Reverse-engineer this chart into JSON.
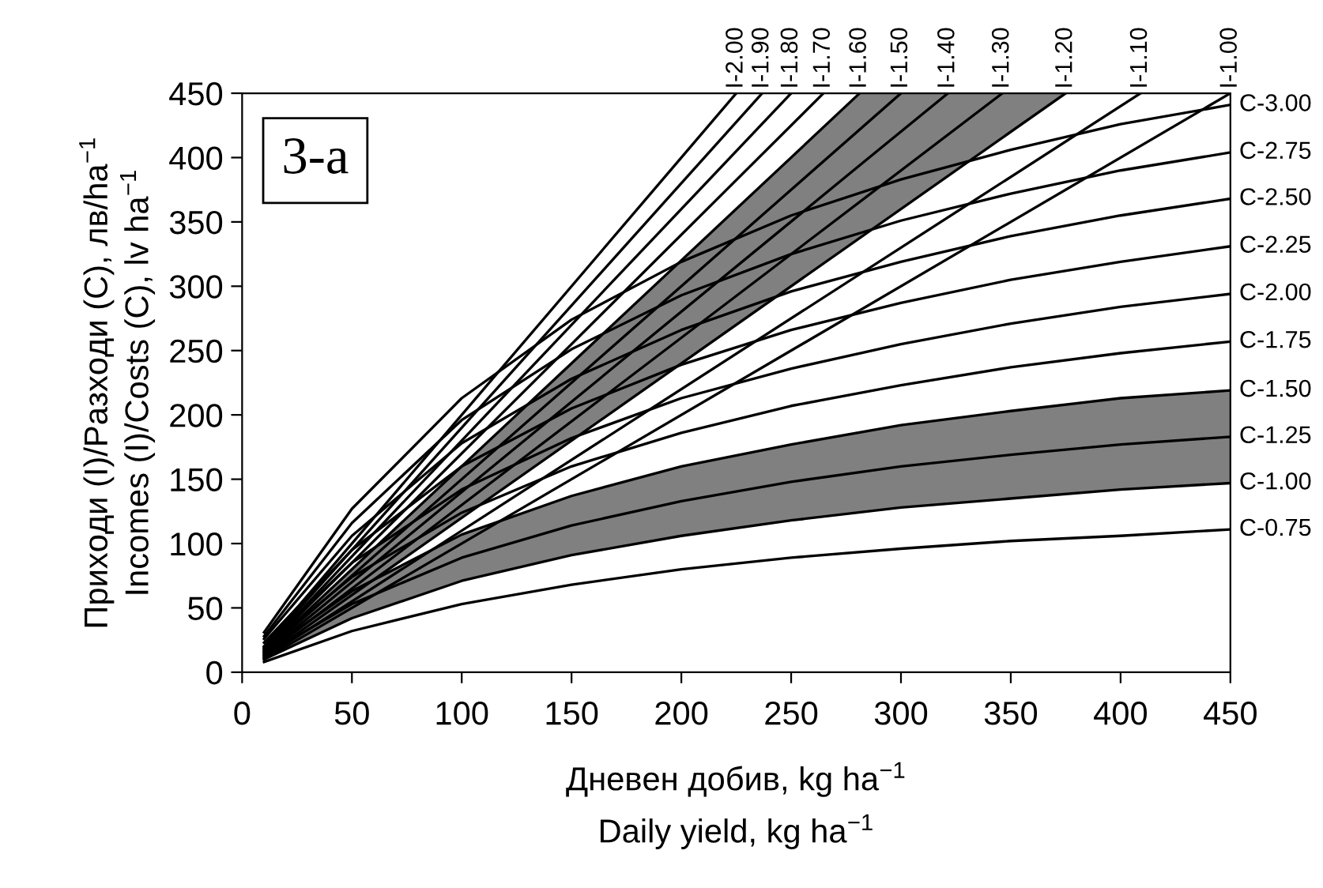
{
  "chart_data": {
    "type": "line",
    "xlabel": "Дневен добив, kg ha$^{−1}$\nDaily yield, kg ha$^{−1}$",
    "ylabel": "Приходи (I)/Разходи (C), лв/ha$^{−1}$\nIncomes (I)/Costs (C), lv ha$^{−1}$",
    "annotations": [
      "3-a"
    ],
    "xlim": [
      0,
      450
    ],
    "ylim": [
      0,
      450
    ],
    "xticks": [
      0,
      50,
      100,
      150,
      200,
      250,
      300,
      350,
      400,
      450
    ],
    "yticks": [
      0,
      50,
      100,
      150,
      200,
      250,
      300,
      350,
      400,
      450
    ],
    "grid": false,
    "legend": false,
    "marker": "none",
    "line_style": "solid",
    "series": [
      {
        "name": "I-2.00",
        "color": "#000000",
        "x": [
          10,
          225
        ],
        "values": [
          20,
          450
        ]
      },
      {
        "name": "I-1.90",
        "color": "#000000",
        "x": [
          10,
          236.8
        ],
        "values": [
          19,
          450
        ]
      },
      {
        "name": "I-1.80",
        "color": "#000000",
        "x": [
          10,
          250
        ],
        "values": [
          18,
          450
        ]
      },
      {
        "name": "I-1.70",
        "color": "#000000",
        "x": [
          10,
          264.7
        ],
        "values": [
          17,
          450
        ]
      },
      {
        "name": "I-1.60",
        "color": "#000000",
        "x": [
          10,
          281.2
        ],
        "values": [
          16,
          450
        ]
      },
      {
        "name": "I-1.50",
        "color": "#000000",
        "x": [
          10,
          300
        ],
        "values": [
          15,
          450
        ]
      },
      {
        "name": "I-1.40",
        "color": "#000000",
        "x": [
          10,
          281.2,
          321.4,
          375
        ],
        "values": [
          14,
          394,
          450,
          null
        ],
        "lower": [
          12,
          337,
          386,
          450
        ],
        "upper": [
          16,
          450,
          450,
          450
        ]
      },
      {
        "name": "I-1.30",
        "color": "#000000",
        "x": [
          10,
          346.2
        ],
        "values": [
          13,
          450
        ]
      },
      {
        "name": "I-1.20",
        "color": "#000000",
        "x": [
          10,
          375
        ],
        "values": [
          12,
          450
        ]
      },
      {
        "name": "I-1.10",
        "color": "#000000",
        "x": [
          10,
          409.1
        ],
        "values": [
          11,
          450
        ]
      },
      {
        "name": "I-1.00",
        "color": "#000000",
        "x": [
          10,
          450
        ],
        "values": [
          10,
          450
        ]
      },
      {
        "name": "C-3.00",
        "color": "#000000",
        "x": [
          10,
          50,
          100,
          150,
          200,
          250,
          300,
          350,
          400,
          450
        ],
        "values": [
          31,
          127,
          213,
          274,
          319,
          355,
          383,
          406,
          426,
          441
        ]
      },
      {
        "name": "C-2.75",
        "color": "#000000",
        "x": [
          10,
          50,
          100,
          150,
          200,
          250,
          300,
          350,
          400,
          450
        ],
        "values": [
          28,
          116,
          196,
          251,
          293,
          325,
          351,
          372,
          390,
          404
        ]
      },
      {
        "name": "C-2.50",
        "color": "#000000",
        "x": [
          10,
          50,
          100,
          150,
          200,
          250,
          300,
          350,
          400,
          450
        ],
        "values": [
          26,
          106,
          178,
          228,
          266,
          296,
          319,
          339,
          355,
          368
        ]
      },
      {
        "name": "C-2.25",
        "color": "#000000",
        "x": [
          10,
          50,
          100,
          150,
          200,
          250,
          300,
          350,
          400,
          450
        ],
        "values": [
          23,
          95,
          160,
          205,
          239,
          266,
          287,
          305,
          319,
          331
        ]
      },
      {
        "name": "C-2.00",
        "color": "#000000",
        "x": [
          10,
          50,
          100,
          150,
          200,
          250,
          300,
          350,
          400,
          450
        ],
        "values": [
          20,
          85,
          142,
          182,
          213,
          236,
          255,
          271,
          284,
          294
        ]
      },
      {
        "name": "C-1.75",
        "color": "#000000",
        "x": [
          10,
          50,
          100,
          150,
          200,
          250,
          300,
          350,
          400,
          450
        ],
        "values": [
          18,
          74,
          124,
          160,
          186,
          207,
          223,
          237,
          248,
          257
        ]
      },
      {
        "name": "C-1.50",
        "color": "#000000",
        "x": [
          10,
          50,
          100,
          150,
          200,
          250,
          300,
          350,
          400,
          450
        ],
        "values": [
          15,
          63,
          107,
          137,
          160,
          177,
          192,
          203,
          213,
          219
        ]
      },
      {
        "name": "C-1.25",
        "color": "#000000",
        "x": [
          10,
          50,
          100,
          150,
          200,
          250,
          300,
          350,
          400,
          450
        ],
        "values": [
          13,
          53,
          89,
          114,
          133,
          148,
          160,
          169,
          177,
          183
        ],
        "lower": [
          10,
          42,
          71,
          91,
          106,
          118,
          128,
          135,
          142,
          147
        ],
        "upper": [
          15,
          63,
          107,
          137,
          160,
          177,
          192,
          203,
          213,
          219
        ]
      },
      {
        "name": "C-1.00",
        "color": "#000000",
        "x": [
          10,
          50,
          100,
          150,
          200,
          250,
          300,
          350,
          400,
          450
        ],
        "values": [
          10,
          42,
          71,
          91,
          106,
          118,
          128,
          135,
          142,
          147
        ]
      },
      {
        "name": "C-0.75",
        "color": "#000000",
        "x": [
          10,
          50,
          100,
          150,
          200,
          250,
          300,
          350,
          400,
          450
        ],
        "values": [
          8,
          32,
          53,
          68,
          80,
          89,
          96,
          102,
          106,
          111
        ]
      }
    ]
  }
}
